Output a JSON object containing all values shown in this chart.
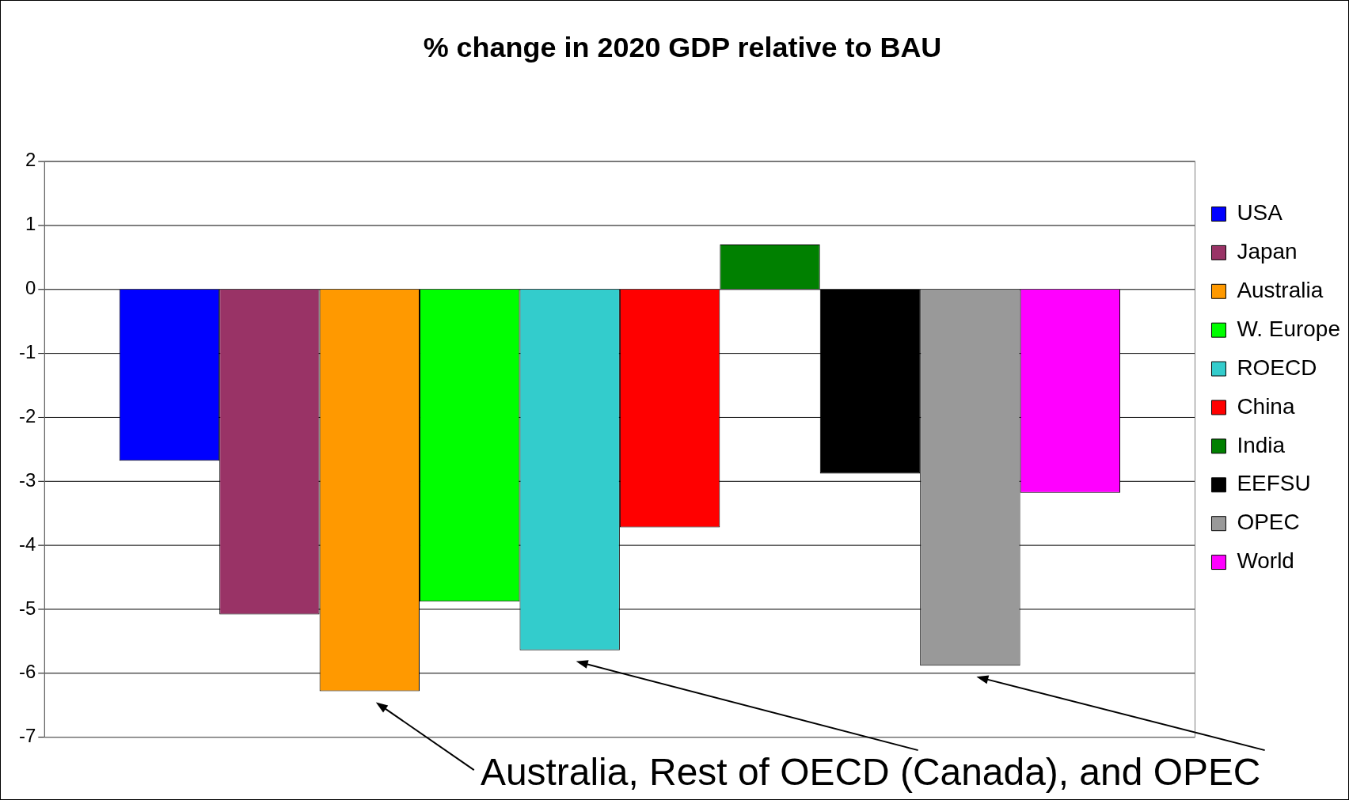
{
  "chart_data": {
    "type": "bar",
    "title": "% change in 2020 GDP relative to BAU",
    "categories": [
      null
    ],
    "series": [
      {
        "name": "USA",
        "color": "#0000ff",
        "values": [
          -2.68
        ]
      },
      {
        "name": "Japan",
        "color": "#993366",
        "values": [
          -5.08
        ]
      },
      {
        "name": "Australia",
        "color": "#ff9900",
        "values": [
          -6.28
        ]
      },
      {
        "name": "W. Europe",
        "color": "#00ff00",
        "values": [
          -4.88
        ]
      },
      {
        "name": "ROECD",
        "color": "#33cccc",
        "values": [
          -5.64
        ]
      },
      {
        "name": "China",
        "color": "#ff0000",
        "values": [
          -3.72
        ]
      },
      {
        "name": "India",
        "color": "#008000",
        "values": [
          0.7
        ]
      },
      {
        "name": "EEFSU",
        "color": "#000000",
        "values": [
          -2.88
        ]
      },
      {
        "name": "OPEC",
        "color": "#999999",
        "values": [
          -5.88
        ]
      },
      {
        "name": "World",
        "color": "#ff00ff",
        "values": [
          -3.18
        ]
      }
    ],
    "ylim": [
      -7,
      2
    ],
    "yticks": [
      -7,
      -6,
      -5,
      -4,
      -3,
      -2,
      -1,
      0,
      1,
      2
    ],
    "grid": "y",
    "legend": "right",
    "annotations": [
      "Australia, Rest of OECD (Canada), and OPEC"
    ]
  }
}
